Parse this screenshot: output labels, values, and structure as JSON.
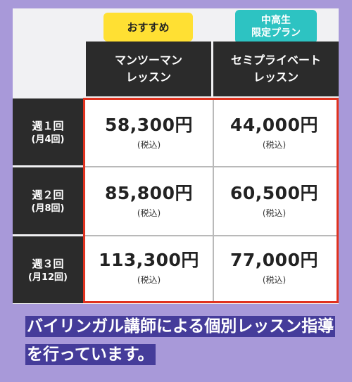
{
  "badges": {
    "recommended": "おすすめ",
    "junior_high_line1": "中高生",
    "junior_high_line2": "限定プラン"
  },
  "columns": [
    {
      "line1": "マンツーマン",
      "line2": "レッスン"
    },
    {
      "line1": "セミプライベート",
      "line2": "レッスン"
    }
  ],
  "rows": [
    {
      "label": "週１回",
      "sub": "(月4回)",
      "prices": [
        "58,300円",
        "44,000円"
      ]
    },
    {
      "label": "週２回",
      "sub": "(月8回)",
      "prices": [
        "85,800円",
        "60,500円"
      ]
    },
    {
      "label": "週３回",
      "sub": "(月12回)",
      "prices": [
        "113,300円",
        "77,000円"
      ]
    }
  ],
  "tax_label": "(税込)",
  "caption": "バイリンガル講師による個別レッスン指導を行っています。",
  "colors": {
    "background": "#a899d9",
    "header": "#2b2b2b",
    "highlight_border": "#e0321f",
    "badge_yellow": "#ffe033",
    "badge_teal": "#2dc3c2",
    "caption_bg": "#453c9a"
  }
}
